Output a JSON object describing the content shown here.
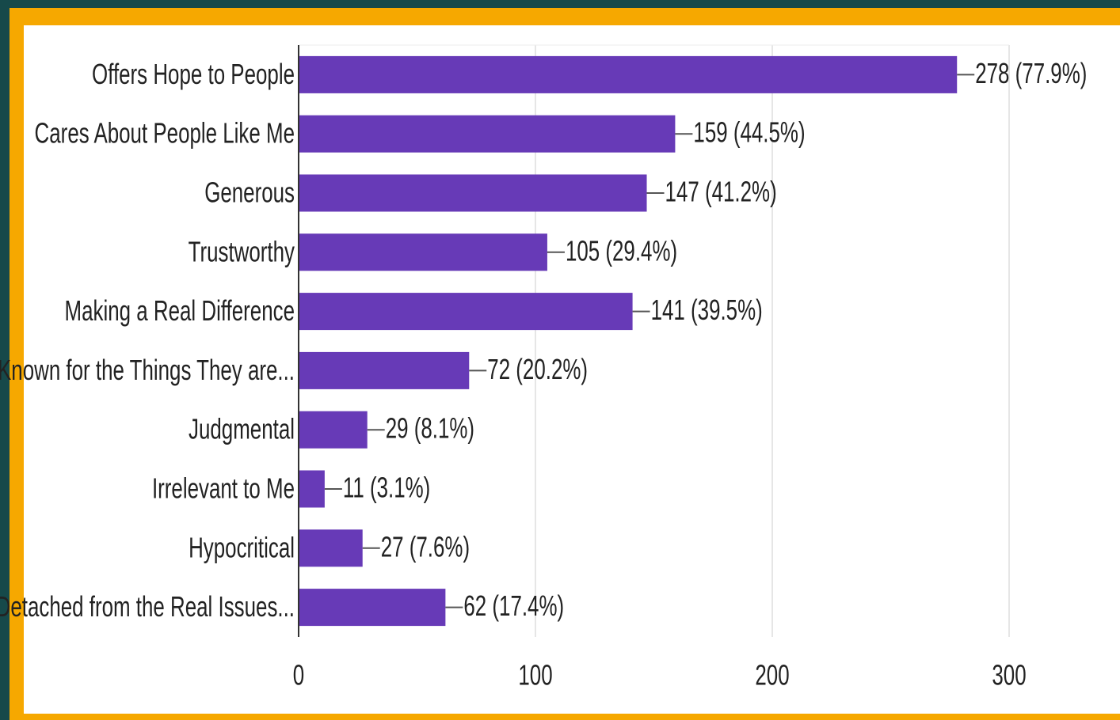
{
  "chart_data": {
    "type": "bar",
    "orientation": "horizontal",
    "categories": [
      "Offers Hope to People",
      "Cares About People Like Me",
      "Generous",
      "Trustworthy",
      "Making a Real Difference",
      "Known for the Things They are...",
      "Judgmental",
      "Irrelevant to Me",
      "Hypocritical",
      "Detached from the Real Issues..."
    ],
    "values": [
      278,
      159,
      147,
      105,
      141,
      72,
      29,
      11,
      27,
      62
    ],
    "value_labels": [
      "278 (77.9%)",
      "159 (44.5%)",
      "147 (41.2%)",
      "105 (29.4%)",
      "141 (39.5%)",
      "72 (20.2%)",
      "29 (8.1%)",
      "11 (3.1%)",
      "27 (7.6%)",
      "62 (17.4%)"
    ],
    "color": "#673ab7",
    "xlim": [
      0,
      300
    ],
    "xticks": [
      0,
      100,
      200,
      300
    ],
    "grid": true
  }
}
